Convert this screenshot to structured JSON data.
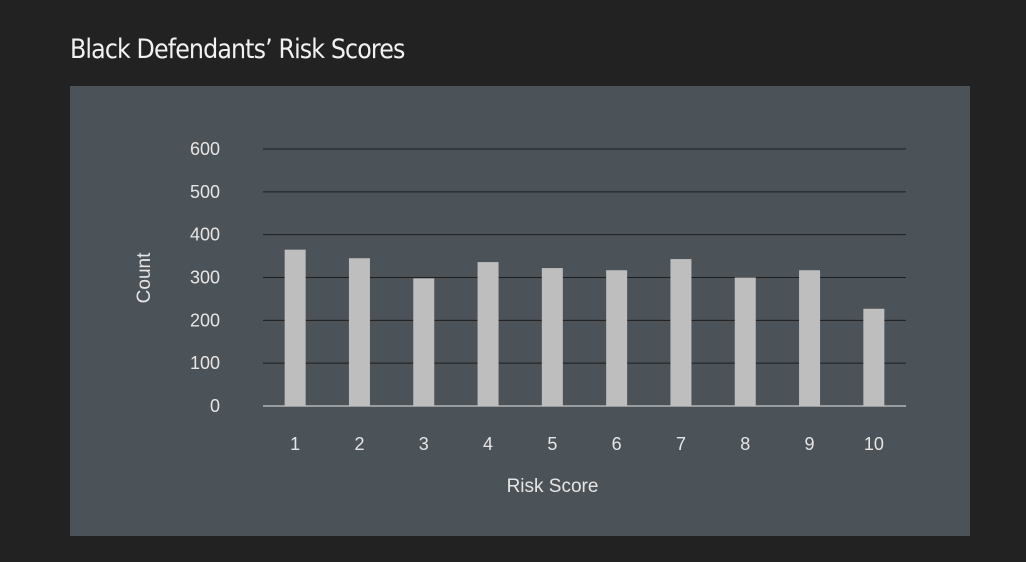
{
  "page": {
    "title": "Black Defendants’ Risk Scores"
  },
  "colors": {
    "background": "#222222",
    "panel": "#4b5258",
    "bar": "#bebebe",
    "gridline": "#1e1e1e",
    "baseline": "#c8c8c8",
    "text": "#e6e6e6"
  },
  "chart_data": {
    "type": "bar",
    "title": "Black Defendants’ Risk Scores",
    "xlabel": "Risk Score",
    "ylabel": "Count",
    "categories": [
      "1",
      "2",
      "3",
      "4",
      "5",
      "6",
      "7",
      "8",
      "9",
      "10"
    ],
    "values": [
      365,
      345,
      298,
      336,
      322,
      317,
      343,
      300,
      317,
      227
    ],
    "ylim": [
      0,
      600
    ],
    "yticks": [
      0,
      100,
      200,
      300,
      400,
      500,
      600
    ],
    "grid": true,
    "legend": false
  }
}
